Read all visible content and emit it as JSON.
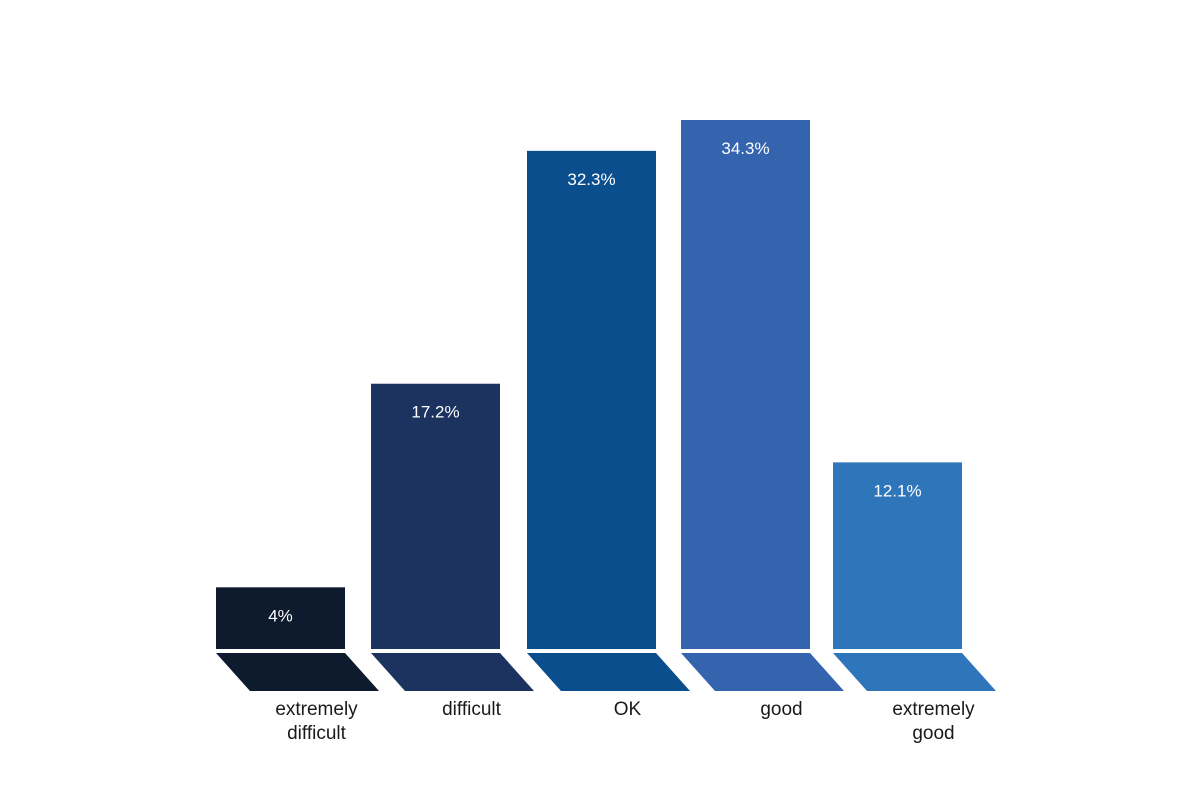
{
  "chart_data": {
    "type": "bar",
    "categories": [
      [
        "extremely",
        "difficult"
      ],
      [
        "difficult"
      ],
      [
        "OK"
      ],
      [
        "good"
      ],
      [
        "extremely",
        "good"
      ]
    ],
    "values": [
      4,
      17.2,
      32.3,
      34.3,
      12.1
    ],
    "value_labels": [
      "4%",
      "17.2%",
      "32.3%",
      "34.3%",
      "12.1%"
    ],
    "colors": [
      "#0e1a2e",
      "#1b335e",
      "#0b4e8e",
      "#3464ae",
      "#2e75ba"
    ],
    "title": "",
    "xlabel": "",
    "ylabel": "",
    "ylim": [
      0,
      34.3
    ],
    "grid": false,
    "legend": "none"
  }
}
